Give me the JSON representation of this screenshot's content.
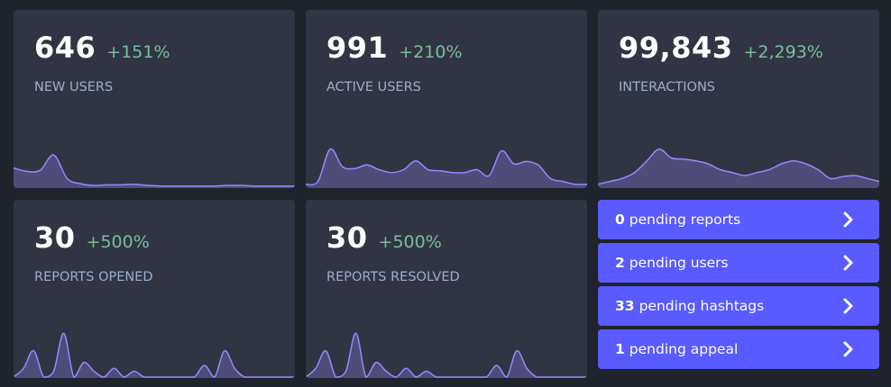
{
  "stats": [
    {
      "id": "new-users",
      "value": "646",
      "change": "+151%",
      "label": "NEW USERS",
      "series": [
        0.33,
        0.27,
        0.29,
        0.55,
        0.15,
        0.06,
        0.03,
        0.04,
        0.04,
        0.05,
        0.03,
        0.02,
        0.02,
        0.02,
        0.02,
        0.02,
        0.03,
        0.03,
        0.02,
        0.02,
        0.02,
        0.02
      ]
    },
    {
      "id": "active-users",
      "value": "991",
      "change": "+210%",
      "label": "ACTIVE USERS",
      "series": [
        0.05,
        0.1,
        0.65,
        0.35,
        0.32,
        0.38,
        0.3,
        0.25,
        0.3,
        0.45,
        0.3,
        0.28,
        0.25,
        0.25,
        0.3,
        0.2,
        0.62,
        0.4,
        0.44,
        0.38,
        0.15,
        0.1,
        0.05,
        0.05
      ]
    },
    {
      "id": "interactions",
      "value": "99,843",
      "change": "+2,293%",
      "label": "INTERACTIONS",
      "series": [
        0.05,
        0.1,
        0.15,
        0.25,
        0.45,
        0.65,
        0.5,
        0.48,
        0.45,
        0.4,
        0.3,
        0.25,
        0.2,
        0.25,
        0.3,
        0.4,
        0.45,
        0.4,
        0.3,
        0.15,
        0.18,
        0.2,
        0.15,
        0.1
      ]
    },
    {
      "id": "reports-opened",
      "value": "30",
      "change": "+500%",
      "label": "REPORTS OPENED",
      "series": [
        0,
        0.15,
        0.45,
        0,
        0.1,
        0.75,
        0,
        0.25,
        0.1,
        0,
        0.15,
        0,
        0.1,
        0,
        0,
        0,
        0,
        0,
        0,
        0.2,
        0,
        0.45,
        0.15,
        0,
        0,
        0,
        0,
        0,
        0
      ]
    },
    {
      "id": "reports-resolved",
      "value": "30",
      "change": "+500%",
      "label": "REPORTS RESOLVED",
      "series": [
        0,
        0.15,
        0.45,
        0,
        0.1,
        0.75,
        0,
        0.25,
        0.1,
        0,
        0.15,
        0,
        0.1,
        0,
        0,
        0,
        0,
        0,
        0,
        0.2,
        0,
        0.45,
        0.15,
        0,
        0,
        0,
        0,
        0,
        0
      ]
    }
  ],
  "pending": [
    {
      "id": "reports",
      "count": "0",
      "text": "pending reports"
    },
    {
      "id": "users",
      "count": "2",
      "text": "pending users"
    },
    {
      "id": "hashtags",
      "count": "33",
      "text": "pending hashtags"
    },
    {
      "id": "appeal",
      "count": "1",
      "text": "pending appeal"
    }
  ],
  "colors": {
    "background": "#1f232b",
    "card": "#313543",
    "positive": "#79bd9a",
    "label": "#9baec8",
    "accent": "#595aff",
    "spark_line": "#8c8dff",
    "spark_fill": "#4f4c7a"
  },
  "icons": {
    "pending_chevron": "chevron-right-icon"
  }
}
